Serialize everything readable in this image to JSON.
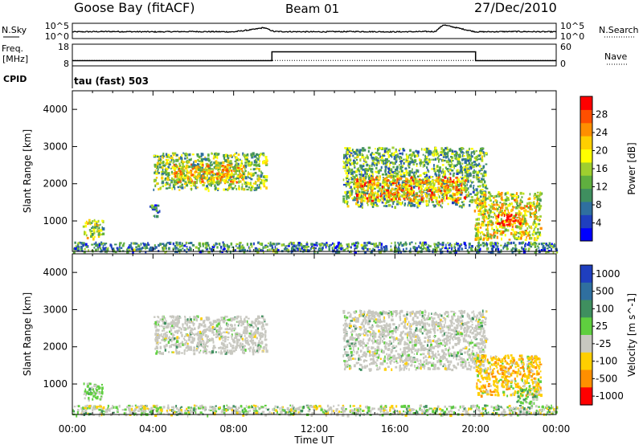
{
  "header": {
    "station": "Goose Bay (fitACF)",
    "beam": "Beam 01",
    "date": "27/Dec/2010"
  },
  "side_labels": {
    "nsky": "N.Sky",
    "freq": "Freq.",
    "freq_unit": "[MHz]",
    "cpid": "CPID",
    "nsearch": "N.Search",
    "nave": "Nave",
    "cpid_value": "tau (fast) 503"
  },
  "chart_data": [
    {
      "type": "line",
      "name": "noise-panel",
      "left_ticks": [
        "10^5",
        "10^0"
      ],
      "right_ticks": [
        "10^5",
        "10^0"
      ],
      "series": [
        {
          "name": "N.Sky",
          "x_hours": [
            0,
            2,
            4,
            6,
            8,
            9,
            9.5,
            10,
            12,
            14,
            16,
            18,
            18.4,
            20,
            22,
            24
          ],
          "log_level": [
            2.2,
            2.3,
            2.2,
            2.3,
            2.2,
            3.0,
            3.6,
            2.3,
            2.2,
            2.3,
            2.2,
            2.3,
            4.5,
            2.2,
            2.3,
            2.2
          ]
        }
      ]
    },
    {
      "type": "line",
      "name": "frequency-panel",
      "left_ticks": [
        "18",
        "8"
      ],
      "right_ticks": [
        "60",
        "0"
      ],
      "series": [
        {
          "name": "Freq",
          "x_hours": [
            0,
            9.9,
            9.9,
            20.0,
            20.0,
            24
          ],
          "mhz": [
            10.4,
            10.4,
            14.5,
            14.5,
            10.4,
            10.4
          ]
        },
        {
          "name": "Nave",
          "x_hours": [
            0,
            9.9,
            9.9,
            20.0,
            20.0,
            24
          ],
          "count": [
            15,
            15,
            15,
            15,
            15,
            15
          ]
        }
      ]
    },
    {
      "type": "heatmap",
      "name": "power",
      "ylabel": "Slant Range [km]",
      "xlabel": "",
      "ylim": [
        180,
        4500
      ],
      "yticks": [
        "1000",
        "2000",
        "3000",
        "4000"
      ],
      "colorbar": {
        "label": "Power [dB]",
        "ticks": [
          "4",
          "8",
          "12",
          "16",
          "20",
          "24",
          "28"
        ],
        "colors": [
          "#0000ff",
          "#1f3fbf",
          "#2f6f9f",
          "#3f8f5f",
          "#5faf3f",
          "#9fcf2f",
          "#ffff00",
          "#ffcf00",
          "#ff8f00",
          "#ff4f00",
          "#ff0000"
        ]
      },
      "regions": [
        {
          "x0": 4.0,
          "x1": 9.6,
          "r0": 1850,
          "r1": 2850,
          "level": 0.45
        },
        {
          "x0": 5.0,
          "x1": 8.5,
          "r0": 2050,
          "r1": 2550,
          "level": 0.65
        },
        {
          "x0": 13.4,
          "x1": 20.5,
          "r0": 1400,
          "r1": 3000,
          "level": 0.4
        },
        {
          "x0": 14.0,
          "x1": 19.5,
          "r0": 1550,
          "r1": 2200,
          "level": 0.7
        },
        {
          "x0": 19.9,
          "x1": 23.2,
          "r0": 500,
          "r1": 1800,
          "level": 0.6
        },
        {
          "x0": 21.0,
          "x1": 22.2,
          "r0": 900,
          "r1": 1200,
          "level": 0.95
        },
        {
          "x0": 0.5,
          "x1": 1.5,
          "r0": 550,
          "r1": 1050,
          "level": 0.5
        },
        {
          "x0": 3.8,
          "x1": 4.3,
          "r0": 1150,
          "r1": 1450,
          "level": 0.3
        },
        {
          "x0": 0.0,
          "x1": 24.0,
          "r0": 180,
          "r1": 450,
          "level": 0.3
        }
      ]
    },
    {
      "type": "heatmap",
      "name": "velocity",
      "ylabel": "Slant Range [km]",
      "xlabel": "Time UT",
      "ylim": [
        180,
        4500
      ],
      "yticks": [
        "1000",
        "2000",
        "3000",
        "4000"
      ],
      "xticks": [
        "00:00",
        "04:00",
        "08:00",
        "12:00",
        "16:00",
        "20:00",
        "00:00"
      ],
      "colorbar": {
        "label": "Velocity [m s^-1]",
        "ticks": [
          "1000",
          "500",
          "100",
          "25",
          "-25",
          "-100",
          "-500",
          "-1000"
        ],
        "colors": [
          "#1f3fbf",
          "#2f6f9f",
          "#3f8f5f",
          "#5fcf3f",
          "#c8c8c0",
          "#ffcf00",
          "#ff8f00",
          "#ff0000"
        ]
      },
      "regions": [
        {
          "x0": 4.0,
          "x1": 9.6,
          "r0": 1850,
          "r1": 2850,
          "v": 0
        },
        {
          "x0": 13.4,
          "x1": 20.5,
          "r0": 1400,
          "r1": 3000,
          "v": 0
        },
        {
          "x0": 20.0,
          "x1": 23.2,
          "r0": 700,
          "r1": 1800,
          "v": -1
        },
        {
          "x0": 22.0,
          "x1": 23.0,
          "r0": 500,
          "r1": 900,
          "v": 2
        },
        {
          "x0": 0.5,
          "x1": 1.5,
          "r0": 550,
          "r1": 1050,
          "v": 2
        },
        {
          "x0": 0.0,
          "x1": 24.0,
          "r0": 180,
          "r1": 450,
          "v": 1
        }
      ]
    }
  ]
}
